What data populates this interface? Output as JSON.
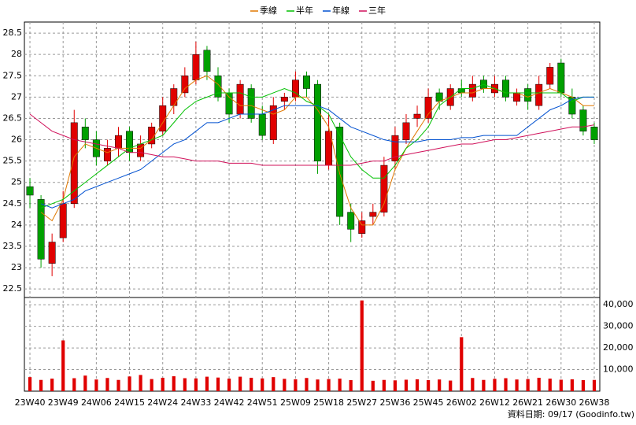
{
  "chart_data": {
    "type": "candlestick",
    "categories": [
      "23W40",
      null,
      null,
      "23W49",
      null,
      null,
      "24W06",
      null,
      null,
      "24W15",
      null,
      null,
      "24W24",
      null,
      null,
      "24W33",
      null,
      null,
      "24W42",
      null,
      null,
      "24W51",
      null,
      null,
      "25W09",
      null,
      null,
      "25W18",
      null,
      null,
      "25W27",
      null,
      null,
      "25W36",
      null,
      null,
      "25W45",
      null,
      null,
      "26W02",
      null,
      null,
      "26W12",
      null,
      null,
      "26W21",
      null,
      null,
      "26W30",
      null,
      null,
      "26W38"
    ],
    "open": [
      24.9,
      24.6,
      23.1,
      23.7,
      24.5,
      26.3,
      26.0,
      25.5,
      25.8,
      26.2,
      25.6,
      25.9,
      26.2,
      26.8,
      27.1,
      27.4,
      28.1,
      27.5,
      27.1,
      26.6,
      27.2,
      26.6,
      26.0,
      26.9,
      27.0,
      27.5,
      27.3,
      25.4,
      26.3,
      24.3,
      23.8,
      24.2,
      24.3,
      25.5,
      26.0,
      26.5,
      26.5,
      27.1,
      26.8,
      27.2,
      27.0,
      27.4,
      27.1,
      27.4,
      26.9,
      27.2,
      26.8,
      27.3,
      27.8,
      27.0,
      26.7,
      26.3
    ],
    "high": [
      25.1,
      24.7,
      23.8,
      24.8,
      26.7,
      26.5,
      26.2,
      26.0,
      26.3,
      26.3,
      26.1,
      26.4,
      27.0,
      27.3,
      27.7,
      28.3,
      28.2,
      27.7,
      27.2,
      27.4,
      27.3,
      26.8,
      27.0,
      27.1,
      27.6,
      27.6,
      27.4,
      26.6,
      26.4,
      24.5,
      24.3,
      24.5,
      25.6,
      26.3,
      26.6,
      26.8,
      27.2,
      27.2,
      27.3,
      27.4,
      27.5,
      27.5,
      27.5,
      27.5,
      27.2,
      27.3,
      27.5,
      27.8,
      27.9,
      27.2,
      26.8,
      26.4
    ],
    "low": [
      24.4,
      23.0,
      22.8,
      23.6,
      24.4,
      25.8,
      25.4,
      25.4,
      25.6,
      25.5,
      25.5,
      25.8,
      26.1,
      26.6,
      27.0,
      27.3,
      27.4,
      26.9,
      26.4,
      26.5,
      26.4,
      26.0,
      25.9,
      26.7,
      26.9,
      27.0,
      25.2,
      25.3,
      24.0,
      23.6,
      23.7,
      24.0,
      24.2,
      25.3,
      25.9,
      26.3,
      26.4,
      26.7,
      26.7,
      27.0,
      26.9,
      27.1,
      27.0,
      26.9,
      26.8,
      26.7,
      26.7,
      27.2,
      27.0,
      26.5,
      26.1,
      25.9
    ],
    "close": [
      24.7,
      23.2,
      23.6,
      24.5,
      26.4,
      26.0,
      25.6,
      25.8,
      26.1,
      25.7,
      25.9,
      26.3,
      26.8,
      27.2,
      27.5,
      28.0,
      27.6,
      27.0,
      26.6,
      27.3,
      26.5,
      26.1,
      26.8,
      27.0,
      27.4,
      27.2,
      25.5,
      26.2,
      24.2,
      23.9,
      24.1,
      24.3,
      25.4,
      26.1,
      26.4,
      26.6,
      27.0,
      26.9,
      27.2,
      27.1,
      27.3,
      27.2,
      27.3,
      27.0,
      27.1,
      26.9,
      27.3,
      27.7,
      27.1,
      26.6,
      26.2,
      26.0
    ],
    "volume": [
      6500,
      5200,
      5800,
      23500,
      6000,
      7200,
      5400,
      6100,
      5200,
      6800,
      7500,
      5600,
      6200,
      6900,
      6000,
      5900,
      6700,
      6300,
      5800,
      6700,
      6200,
      5900,
      6500,
      5700,
      5500,
      6100,
      5400,
      5600,
      5800,
      5100,
      42000,
      4800,
      5200,
      5000,
      5300,
      5500,
      5100,
      5400,
      4900,
      25000,
      6100,
      5200,
      5700,
      6000,
      5400,
      5600,
      6200,
      5800,
      5300,
      5500,
      5100,
      5200
    ],
    "up_color": "#e00000",
    "down_color": "#00a000",
    "volume_color": "#e00000",
    "ylim": [
      22.3,
      28.76
    ],
    "yticks": [
      22.5,
      23,
      23.5,
      24,
      24.5,
      25,
      25.5,
      26,
      26.5,
      27,
      27.5,
      28,
      28.5
    ],
    "volume_ylim": [
      0,
      43350
    ],
    "volume_yticks": [
      {
        "value": 10000,
        "label": "10,000"
      },
      {
        "value": 20000,
        "label": "20,000"
      },
      {
        "value": 30000,
        "label": "30,000"
      },
      {
        "value": 40000,
        "label": "40,000"
      }
    ],
    "grid": true,
    "series": [
      {
        "name": "季線",
        "color": "#e07800",
        "values": [
          null,
          24.3,
          24.1,
          24.6,
          25.6,
          25.9,
          25.8,
          25.7,
          25.8,
          25.8,
          25.8,
          26.0,
          26.4,
          26.8,
          27.2,
          27.4,
          27.5,
          27.3,
          27.0,
          26.8,
          26.8,
          26.7,
          26.6,
          26.7,
          27.0,
          27.0,
          26.7,
          26.3,
          25.2,
          24.4,
          24.0,
          24.0,
          24.5,
          25.3,
          25.8,
          26.2,
          26.6,
          26.9,
          27.0,
          27.1,
          27.1,
          27.2,
          27.2,
          27.1,
          27.1,
          27.0,
          27.1,
          27.2,
          27.1,
          27.0,
          26.8,
          26.8
        ]
      },
      {
        "name": "半年",
        "color": "#00c000",
        "values": [
          null,
          24.4,
          24.5,
          24.6,
          24.8,
          25.0,
          25.2,
          25.4,
          25.6,
          25.8,
          25.9,
          26.0,
          26.1,
          26.4,
          26.7,
          26.9,
          27.0,
          27.1,
          27.1,
          27.1,
          27.0,
          27.0,
          27.1,
          27.2,
          27.1,
          26.9,
          26.8,
          26.6,
          26.1,
          25.6,
          25.3,
          25.1,
          25.1,
          25.4,
          25.8,
          26.0,
          26.3,
          26.8,
          27.0,
          27.2,
          27.2,
          27.3,
          27.2,
          27.1,
          27.1,
          27.1,
          27.1,
          27.1,
          27.1,
          26.9,
          27.0,
          27.0
        ]
      },
      {
        "name": "年線",
        "color": "#0050d0",
        "values": [
          null,
          24.5,
          24.4,
          24.5,
          24.6,
          24.8,
          24.9,
          25.0,
          25.1,
          25.2,
          25.3,
          25.5,
          25.7,
          25.9,
          26.0,
          26.2,
          26.4,
          26.4,
          26.5,
          26.6,
          26.6,
          26.6,
          26.7,
          26.8,
          26.8,
          26.8,
          26.8,
          26.7,
          26.5,
          26.3,
          26.2,
          26.1,
          26.0,
          25.95,
          25.95,
          25.95,
          26.0,
          26.0,
          26.0,
          26.05,
          26.05,
          26.1,
          26.1,
          26.1,
          26.1,
          26.3,
          26.5,
          26.7,
          26.8,
          26.95,
          27.0,
          27.0
        ]
      },
      {
        "name": "三年",
        "color": "#d0105a",
        "values": [
          26.6,
          26.4,
          26.2,
          26.1,
          26.0,
          25.95,
          25.9,
          25.85,
          25.8,
          25.7,
          25.7,
          25.65,
          25.6,
          25.6,
          25.55,
          25.5,
          25.5,
          25.5,
          25.45,
          25.45,
          25.45,
          25.4,
          25.4,
          25.4,
          25.4,
          25.4,
          25.4,
          25.4,
          25.4,
          25.4,
          25.45,
          25.5,
          25.5,
          25.6,
          25.65,
          25.7,
          25.75,
          25.8,
          25.85,
          25.9,
          25.9,
          25.95,
          26.0,
          26.0,
          26.05,
          26.1,
          26.15,
          26.2,
          26.25,
          26.3,
          26.3,
          26.35
        ]
      }
    ],
    "footer": "資料日期: 09/17 (Goodinfo.tw)"
  }
}
